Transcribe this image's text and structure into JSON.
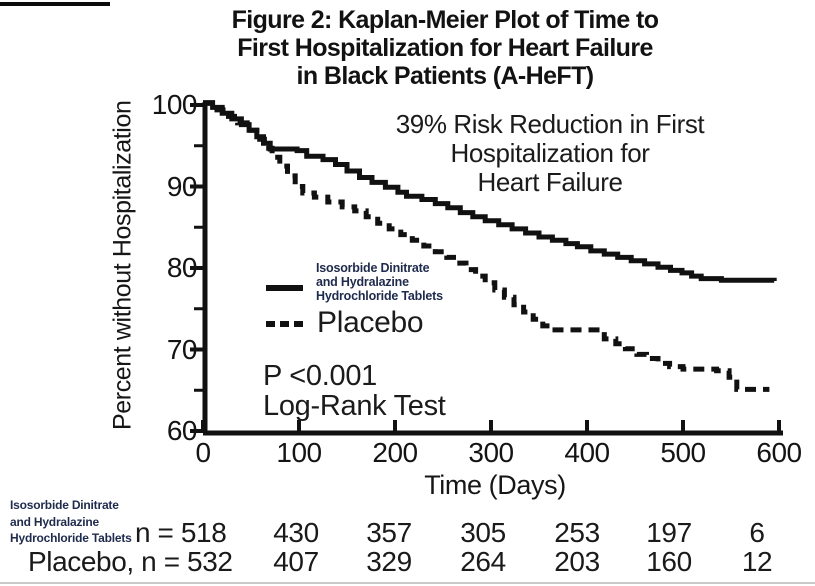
{
  "figure": {
    "title": "Figure 2: Kaplan-Meier Plot of Time to\nFirst Hospitalization for Heart Failure\nin Black Patients (A-HeFT)",
    "annotation": "39% Risk Reduction in First\nHospitalization for\nHeart Failure",
    "stats": "P <0.001\nLog-Rank Test",
    "colors": {
      "curve": "#111111",
      "drug_label_navy": "#1f2b4d",
      "bottom_rule_gray": "#c9c9c9"
    }
  },
  "legend": {
    "treatment_label": "Isosorbide Dinitrate\nand Hydralazine\nHydrochloride Tablets",
    "placebo_label": "Placebo"
  },
  "risk_table": {
    "drug_label": "Isosorbide Dinitrate\nand Hydralazine\nHydrochloride Tablets",
    "row1_n_text": "n = 518",
    "row2_n_text": "Placebo, n = 532"
  },
  "chart_data": {
    "type": "line",
    "subtype": "kaplan-meier-step",
    "title": "Figure 2: Kaplan-Meier Plot of Time to First Hospitalization for Heart Failure in Black Patients (A-HeFT)",
    "annotation": "39% Risk Reduction in First Hospitalization for Heart Failure",
    "stats_note": "P <0.001 Log-Rank Test",
    "xlabel": "Time (Days)",
    "ylabel": "Percent without Hospitalization",
    "xlim": [
      0,
      600
    ],
    "ylim": [
      60,
      100
    ],
    "x_ticks": [
      0,
      100,
      200,
      300,
      400,
      500,
      600
    ],
    "y_ticks": [
      100,
      90,
      80,
      70,
      60
    ],
    "y_minor_ticks": [
      95,
      85,
      75,
      65
    ],
    "grid": false,
    "legend_position": "inside-left",
    "series": [
      {
        "name": "Isosorbide Dinitrate and Hydralazine Hydrochloride Tablets",
        "style": "solid",
        "points": [
          [
            0,
            100.3
          ],
          [
            10,
            99.7
          ],
          [
            20,
            99.0
          ],
          [
            30,
            98.3
          ],
          [
            40,
            97.6
          ],
          [
            48,
            96.9
          ],
          [
            56,
            96.1
          ],
          [
            63,
            95.3
          ],
          [
            70,
            94.6
          ],
          [
            98,
            94.4
          ],
          [
            108,
            93.7
          ],
          [
            125,
            93.3
          ],
          [
            138,
            92.7
          ],
          [
            150,
            91.9
          ],
          [
            163,
            91.1
          ],
          [
            176,
            90.5
          ],
          [
            190,
            89.9
          ],
          [
            203,
            89.3
          ],
          [
            212,
            88.8
          ],
          [
            228,
            88.4
          ],
          [
            242,
            87.9
          ],
          [
            255,
            87.4
          ],
          [
            268,
            86.8
          ],
          [
            281,
            86.3
          ],
          [
            294,
            85.8
          ],
          [
            308,
            85.3
          ],
          [
            322,
            84.8
          ],
          [
            336,
            84.3
          ],
          [
            350,
            83.8
          ],
          [
            364,
            83.4
          ],
          [
            378,
            83.0
          ],
          [
            390,
            82.6
          ],
          [
            404,
            82.1
          ],
          [
            418,
            81.7
          ],
          [
            432,
            81.3
          ],
          [
            446,
            80.9
          ],
          [
            460,
            80.5
          ],
          [
            474,
            80.1
          ],
          [
            487,
            79.7
          ],
          [
            499,
            79.4
          ],
          [
            509,
            79.0
          ],
          [
            519,
            78.7
          ],
          [
            540,
            78.5
          ],
          [
            595,
            78.4
          ]
        ]
      },
      {
        "name": "Placebo",
        "style": "dashed",
        "points": [
          [
            0,
            100.2
          ],
          [
            12,
            99.4
          ],
          [
            24,
            98.6
          ],
          [
            36,
            97.8
          ],
          [
            46,
            96.9
          ],
          [
            56,
            95.8
          ],
          [
            64,
            94.7
          ],
          [
            72,
            93.6
          ],
          [
            80,
            92.5
          ],
          [
            88,
            91.3
          ],
          [
            96,
            90.0
          ],
          [
            104,
            89.2
          ],
          [
            116,
            88.7
          ],
          [
            130,
            88.1
          ],
          [
            145,
            87.5
          ],
          [
            158,
            87.0
          ],
          [
            170,
            86.3
          ],
          [
            182,
            85.5
          ],
          [
            194,
            84.8
          ],
          [
            206,
            84.1
          ],
          [
            218,
            83.4
          ],
          [
            230,
            82.7
          ],
          [
            242,
            82.0
          ],
          [
            254,
            81.3
          ],
          [
            264,
            80.6
          ],
          [
            274,
            79.8
          ],
          [
            284,
            79.0
          ],
          [
            294,
            78.2
          ],
          [
            304,
            77.3
          ],
          [
            314,
            76.4
          ],
          [
            324,
            75.5
          ],
          [
            334,
            74.6
          ],
          [
            344,
            73.7
          ],
          [
            354,
            72.9
          ],
          [
            362,
            72.4
          ],
          [
            410,
            72.4
          ],
          [
            418,
            71.3
          ],
          [
            430,
            70.7
          ],
          [
            440,
            70.1
          ],
          [
            452,
            69.4
          ],
          [
            462,
            68.9
          ],
          [
            474,
            68.3
          ],
          [
            486,
            67.9
          ],
          [
            500,
            67.6
          ],
          [
            535,
            67.4
          ],
          [
            548,
            66.6
          ],
          [
            556,
            65.1
          ],
          [
            590,
            65.1
          ]
        ]
      }
    ],
    "at_risk": {
      "days": [
        0,
        100,
        200,
        300,
        400,
        500,
        600
      ],
      "treatment": [
        518,
        430,
        357,
        305,
        253,
        197,
        6
      ],
      "placebo": [
        532,
        407,
        329,
        264,
        203,
        160,
        12
      ]
    }
  }
}
